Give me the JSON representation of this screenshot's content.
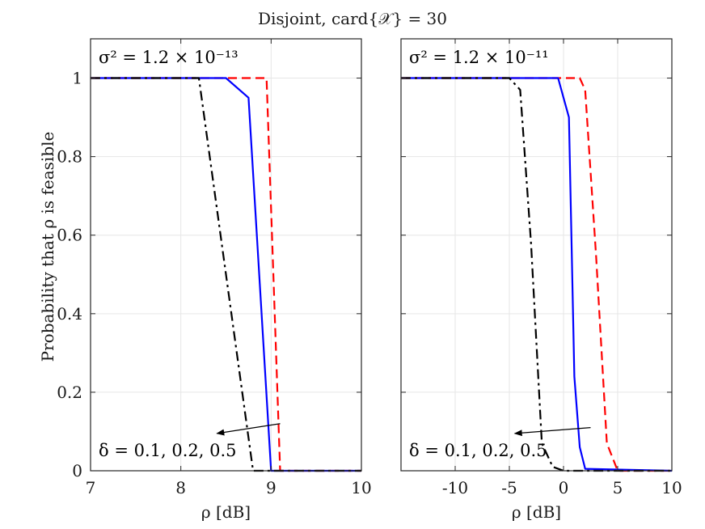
{
  "figure": {
    "title": "Disjoint, card{𝒳} = 30",
    "ylabel": "Probability that ρ is feasible"
  },
  "chart_data": [
    {
      "type": "line",
      "annotation": "σ² = 1.2 × 10⁻¹³",
      "delta_label": "δ = 0.1, 0.2, 0.5",
      "xlabel": "ρ [dB]",
      "ylabel": "Probability that ρ is feasible",
      "xlim": [
        7,
        10
      ],
      "ylim": [
        0,
        1.1
      ],
      "xticks": [
        7,
        8,
        9,
        10
      ],
      "xtick_labels": [
        "7",
        "8",
        "9",
        "10"
      ],
      "yticks": [
        0,
        0.2,
        0.4,
        0.6,
        0.8,
        1
      ],
      "ytick_labels": [
        "0",
        "0.2",
        "0.4",
        "0.6",
        "0.8",
        "1"
      ],
      "grid": true,
      "series": [
        {
          "name": "δ = 0.1",
          "color": "#ff0000",
          "style": "dashed",
          "x": [
            7,
            8.9,
            8.95,
            9.1,
            9.15,
            10
          ],
          "y": [
            1,
            1,
            1,
            0,
            0,
            0
          ]
        },
        {
          "name": "δ = 0.2",
          "color": "#0000ff",
          "style": "solid",
          "x": [
            7,
            8.5,
            8.75,
            9.0,
            10
          ],
          "y": [
            1,
            1,
            0.95,
            0,
            0
          ]
        },
        {
          "name": "δ = 0.5",
          "color": "#000000",
          "style": "dashdot",
          "x": [
            7,
            8.2,
            8.8,
            10
          ],
          "y": [
            1,
            1,
            0,
            0
          ]
        }
      ],
      "arrow": {
        "from": [
          9.1,
          0.12
        ],
        "to": [
          8.4,
          0.095
        ]
      }
    },
    {
      "type": "line",
      "annotation": "σ² = 1.2 × 10⁻¹¹",
      "delta_label": "δ = 0.1, 0.2, 0.5",
      "xlabel": "ρ [dB]",
      "xlim": [
        -15,
        10
      ],
      "ylim": [
        0,
        1.1
      ],
      "xticks": [
        -10,
        -5,
        0,
        5,
        10
      ],
      "xtick_labels": [
        "-10",
        "-5",
        "0",
        "5",
        "10"
      ],
      "yticks": [
        0,
        0.2,
        0.4,
        0.6,
        0.8,
        1
      ],
      "grid": true,
      "series": [
        {
          "name": "δ = 0.1",
          "color": "#ff0000",
          "style": "dashed",
          "x": [
            -15,
            0,
            1.5,
            2,
            3,
            4,
            5,
            10
          ],
          "y": [
            1,
            1,
            1,
            0.97,
            0.55,
            0.07,
            0,
            0
          ]
        },
        {
          "name": "δ = 0.2",
          "color": "#0000ff",
          "style": "solid",
          "x": [
            -15,
            -0.5,
            0.5,
            1,
            1.5,
            2,
            10
          ],
          "y": [
            1,
            1,
            0.9,
            0.24,
            0.06,
            0.005,
            0
          ]
        },
        {
          "name": "δ = 0.5",
          "color": "#000000",
          "style": "dashdot",
          "x": [
            -15,
            -5,
            -4,
            -3,
            -2,
            -1,
            0,
            10
          ],
          "y": [
            1,
            1,
            0.97,
            0.58,
            0.07,
            0.01,
            0,
            0
          ]
        }
      ],
      "arrow": {
        "from": [
          2.5,
          0.11
        ],
        "to": [
          -4.5,
          0.095
        ]
      }
    }
  ]
}
